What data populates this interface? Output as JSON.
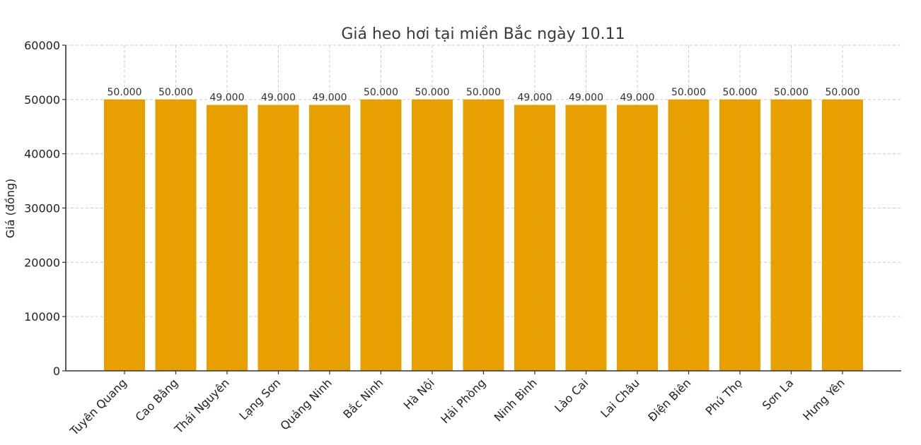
{
  "chart_data": {
    "type": "bar",
    "title": "Giá heo hơi tại miền Bắc ngày 10.11",
    "xlabel": "",
    "ylabel": "Giá (đồng)",
    "ylim": [
      0,
      60000
    ],
    "yticks": [
      0,
      10000,
      20000,
      30000,
      40000,
      50000,
      60000
    ],
    "grid": true,
    "legend": null,
    "bar_color": "#E8A000",
    "categories": [
      "Tuyên Quang",
      "Cao Bằng",
      "Thái Nguyên",
      "Lạng Sơn",
      "Quảng Ninh",
      "Bắc Ninh",
      "Hà Nội",
      "Hải Phòng",
      "Ninh Bình",
      "Lào Cai",
      "Lai Châu",
      "Điện Biên",
      "Phú Thọ",
      "Sơn La",
      "Hưng Yên"
    ],
    "values": [
      50000,
      50000,
      49000,
      49000,
      49000,
      50000,
      50000,
      50000,
      49000,
      49000,
      49000,
      50000,
      50000,
      50000,
      50000
    ],
    "value_labels": [
      "50.000",
      "50.000",
      "49.000",
      "49.000",
      "49.000",
      "50.000",
      "50.000",
      "50.000",
      "49.000",
      "49.000",
      "49.000",
      "50.000",
      "50.000",
      "50.000",
      "50.000"
    ]
  }
}
